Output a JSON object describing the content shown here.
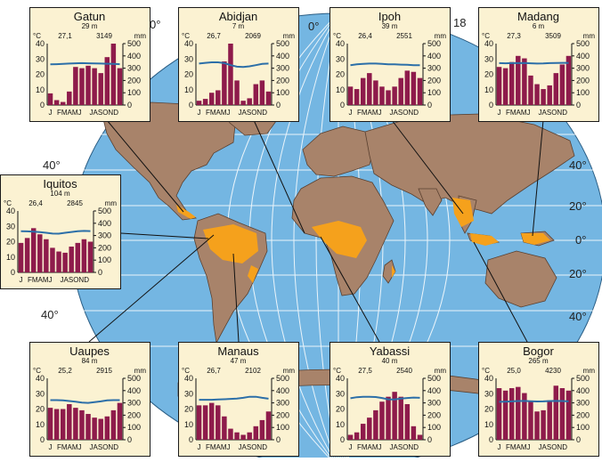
{
  "colors": {
    "ocean": "#74b6e2",
    "land": "#a8836a",
    "land_outline": "#5a4030",
    "rainforest": "#f5a11c",
    "panel_bg": "#fbf2d2",
    "panel_border": "#1a1a1a",
    "bar": "#8e1b4b",
    "temp_line": "#2c6fa8"
  },
  "map_labels": {
    "lon_0": "0°",
    "lon_180": "18",
    "lon_180_mark": "0°",
    "lat_40n_left": "40°",
    "lat_40s_left": "40°",
    "lat_40n_right": "40°",
    "lat_20n_right": "20°",
    "lat_0_right": "0°",
    "lat_20s_right": "20°",
    "lat_40s_right": "40°"
  },
  "panel_common": {
    "temp_unit": "°C",
    "precip_unit": "mm",
    "temp_ticks": [
      "40",
      "30",
      "20",
      "10",
      "0"
    ],
    "precip_ticks": [
      "500",
      "400",
      "300",
      "200",
      "100",
      "0"
    ],
    "month_label_a": "J",
    "month_label_b": "FMAMJ",
    "month_label_c": "JASOND"
  },
  "stations": [
    {
      "name": "Gatun",
      "altitude": "29 m",
      "mean_temp": "27,1",
      "annual_precip": "3149",
      "temp": [
        26.5,
        26.6,
        26.8,
        27.0,
        27.2,
        27.3,
        27.2,
        27.1,
        27.0,
        26.9,
        26.8,
        26.6
      ],
      "precip": [
        95,
        40,
        25,
        110,
        310,
        300,
        320,
        300,
        260,
        390,
        540,
        300
      ]
    },
    {
      "name": "Abidjan",
      "altitude": "7 m",
      "mean_temp": "26,7",
      "annual_precip": "2069",
      "temp": [
        27.0,
        27.5,
        27.8,
        27.8,
        27.3,
        26.0,
        25.0,
        24.8,
        25.2,
        26.0,
        26.8,
        27.0
      ],
      "precip": [
        35,
        50,
        100,
        120,
        355,
        630,
        200,
        35,
        55,
        170,
        200,
        110
      ]
    },
    {
      "name": "Ipoh",
      "altitude": "39 m",
      "mean_temp": "26,4",
      "annual_precip": "2551",
      "temp": [
        26.0,
        26.5,
        26.8,
        27.0,
        27.0,
        26.8,
        26.5,
        26.5,
        26.3,
        26.2,
        26.0,
        26.0
      ],
      "precip": [
        150,
        130,
        220,
        260,
        200,
        150,
        120,
        150,
        220,
        280,
        270,
        220
      ]
    },
    {
      "name": "Madang",
      "altitude": "6 m",
      "mean_temp": "27,3",
      "annual_precip": "3509",
      "temp": [
        27.3,
        27.2,
        27.3,
        27.3,
        27.4,
        27.2,
        27.0,
        27.1,
        27.3,
        27.4,
        27.5,
        27.4
      ],
      "precip": [
        310,
        300,
        350,
        400,
        380,
        240,
        170,
        130,
        160,
        260,
        330,
        400
      ]
    },
    {
      "name": "Iquitos",
      "altitude": "104 m",
      "mean_temp": "26,4",
      "annual_precip": "2845",
      "temp": [
        26.8,
        26.7,
        26.5,
        26.2,
        25.8,
        25.3,
        25.2,
        25.8,
        26.3,
        26.8,
        27.0,
        26.9
      ],
      "precip": [
        240,
        280,
        360,
        310,
        270,
        200,
        170,
        160,
        210,
        240,
        270,
        250
      ]
    },
    {
      "name": "Uaupes",
      "altitude": "84 m",
      "mean_temp": "25,2",
      "annual_precip": "2915",
      "temp": [
        25.8,
        25.8,
        25.6,
        25.2,
        24.8,
        24.2,
        24.0,
        24.5,
        25.0,
        25.6,
        25.8,
        25.8
      ],
      "precip": [
        260,
        250,
        250,
        290,
        260,
        240,
        210,
        180,
        170,
        190,
        240,
        300
      ]
    },
    {
      "name": "Manaus",
      "altitude": "47 m",
      "mean_temp": "26,7",
      "annual_precip": "2102",
      "temp": [
        26.0,
        26.0,
        26.0,
        26.2,
        26.4,
        26.6,
        26.8,
        27.3,
        28.0,
        28.0,
        27.3,
        26.7
      ],
      "precip": [
        280,
        280,
        300,
        280,
        190,
        90,
        60,
        40,
        60,
        110,
        160,
        230
      ]
    },
    {
      "name": "Yabassi",
      "altitude": "40 m",
      "mean_temp": "27,5",
      "annual_precip": "2540",
      "temp": [
        27.0,
        27.7,
        28.0,
        28.0,
        27.8,
        27.2,
        26.3,
        26.2,
        26.8,
        27.2,
        27.5,
        27.3
      ],
      "precip": [
        40,
        60,
        130,
        180,
        240,
        310,
        350,
        390,
        350,
        290,
        110,
        40
      ]
    },
    {
      "name": "Bogor",
      "altitude": "265 m",
      "mean_temp": "25,0",
      "annual_precip": "4230",
      "temp": [
        24.7,
        24.8,
        25.0,
        25.2,
        25.3,
        25.1,
        24.9,
        25.0,
        25.2,
        25.3,
        25.2,
        25.0
      ],
      "precip": [
        420,
        400,
        420,
        430,
        380,
        310,
        230,
        240,
        320,
        440,
        420,
        400
      ]
    }
  ]
}
